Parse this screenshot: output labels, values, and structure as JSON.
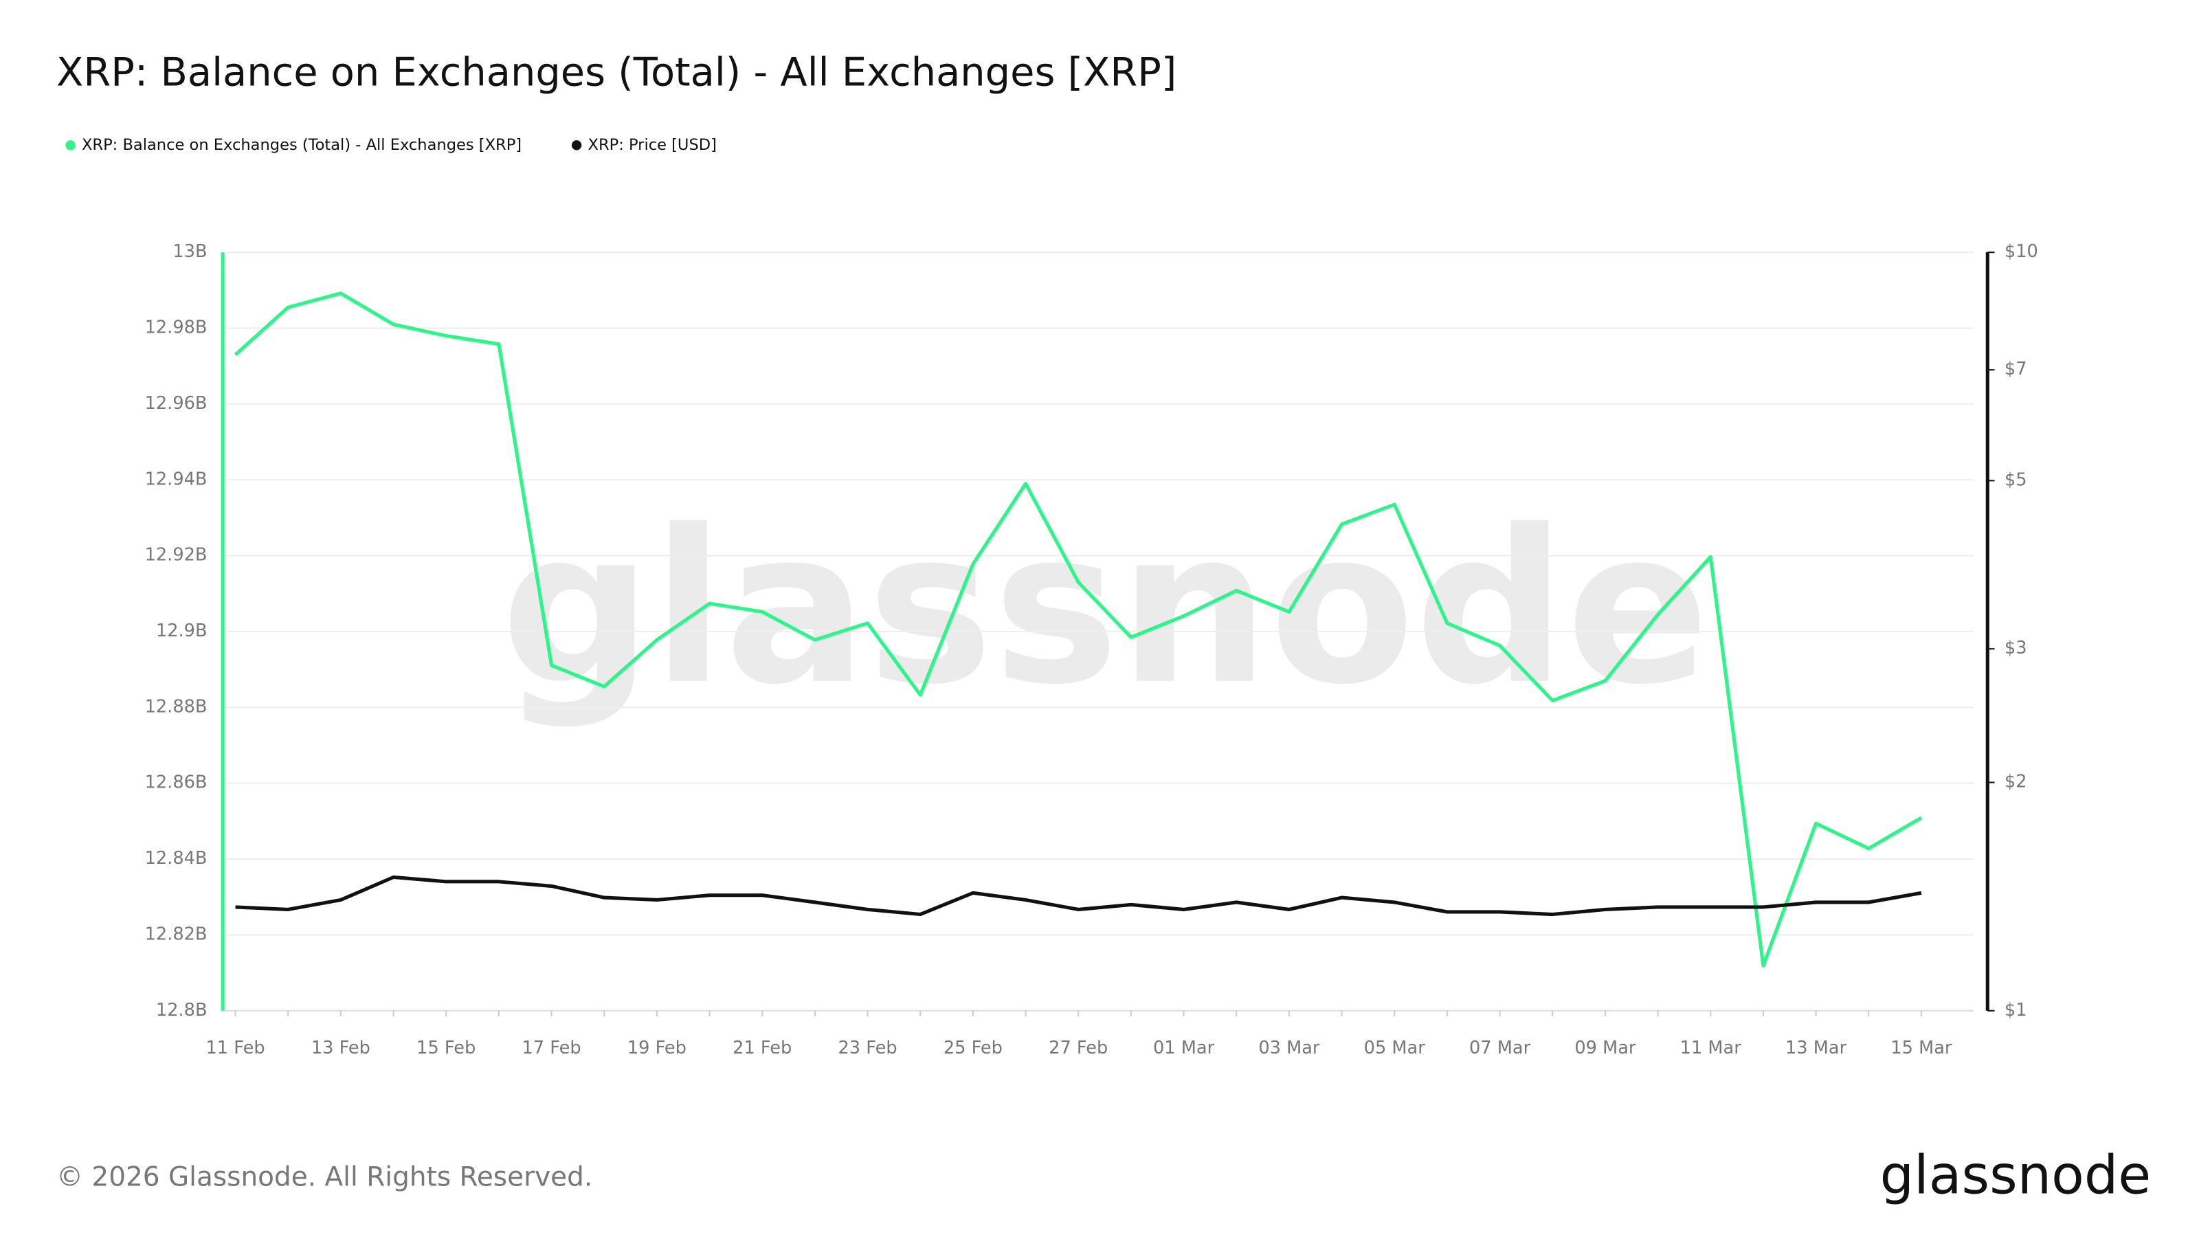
{
  "chart_data": {
    "type": "line",
    "title": "XRP: Balance on Exchanges (Total) - All Exchanges [XRP]",
    "categories": [
      "11 Feb",
      null,
      "13 Feb",
      null,
      "15 Feb",
      null,
      "17 Feb",
      null,
      "19 Feb",
      null,
      "21 Feb",
      null,
      "23 Feb",
      null,
      "25 Feb",
      null,
      "27 Feb",
      null,
      "01 Mar",
      null,
      "03 Mar",
      null,
      "05 Mar",
      null,
      "07 Mar",
      null,
      "09 Mar",
      null,
      "11 Mar",
      null,
      "13 Mar",
      null,
      "15 Mar"
    ],
    "series": [
      {
        "name": "XRP: Balance on Exchanges (Total) - All Exchanges [XRP]",
        "color": "#2ef58a",
        "axis": "y",
        "values": [
          12973000000,
          12985500000,
          12989200000,
          12981000000,
          12978000000,
          12975800000,
          12891100000,
          12885500000,
          12897800000,
          12907400000,
          12905200000,
          12897800000,
          12902200000,
          12883300000,
          12917800000,
          12939000000,
          12913000000,
          12898500000,
          12904100000,
          12910800000,
          12905200000,
          12928300000,
          12933500000,
          12902200000,
          12896300000,
          12881800000,
          12887000000,
          12904500000,
          12919700000,
          12811900000,
          12849400000,
          12842800000,
          12850900000
        ]
      },
      {
        "name": "XRP: Price [USD]",
        "color": "#111111",
        "axis": "y2",
        "values": [
          1.37,
          1.36,
          1.4,
          1.5,
          1.48,
          1.48,
          1.46,
          1.41,
          1.4,
          1.42,
          1.42,
          1.39,
          1.36,
          1.34,
          1.43,
          1.4,
          1.36,
          1.38,
          1.36,
          1.39,
          1.36,
          1.41,
          1.39,
          1.35,
          1.35,
          1.34,
          1.36,
          1.37,
          1.37,
          1.37,
          1.39,
          1.39,
          1.43
        ]
      }
    ],
    "ylim": [
      12800000000,
      13000000000
    ],
    "yticks": [
      {
        "value": 12800000000,
        "label": "12.8B"
      },
      {
        "value": 12820000000,
        "label": "12.82B"
      },
      {
        "value": 12840000000,
        "label": "12.84B"
      },
      {
        "value": 12860000000,
        "label": "12.86B"
      },
      {
        "value": 12880000000,
        "label": "12.88B"
      },
      {
        "value": 12900000000,
        "label": "12.9B"
      },
      {
        "value": 12920000000,
        "label": "12.92B"
      },
      {
        "value": 12940000000,
        "label": "12.94B"
      },
      {
        "value": 12960000000,
        "label": "12.96B"
      },
      {
        "value": 12980000000,
        "label": "12.98B"
      },
      {
        "value": 13000000000,
        "label": "13B"
      }
    ],
    "y2lim": [
      1,
      10
    ],
    "y2ticks": [
      {
        "value": 1,
        "label": "$1"
      },
      {
        "value": 2,
        "label": "$2"
      },
      {
        "value": 3,
        "label": "$3"
      },
      {
        "value": 5,
        "label": "$5"
      },
      {
        "value": 7,
        "label": "$7"
      },
      {
        "value": 10,
        "label": "$10"
      }
    ],
    "y2log": true,
    "grid": true,
    "legend": "top-left"
  },
  "watermark": "glassnode",
  "footer": "© 2026 Glassnode. All Rights Reserved.",
  "logo": "glassnode"
}
